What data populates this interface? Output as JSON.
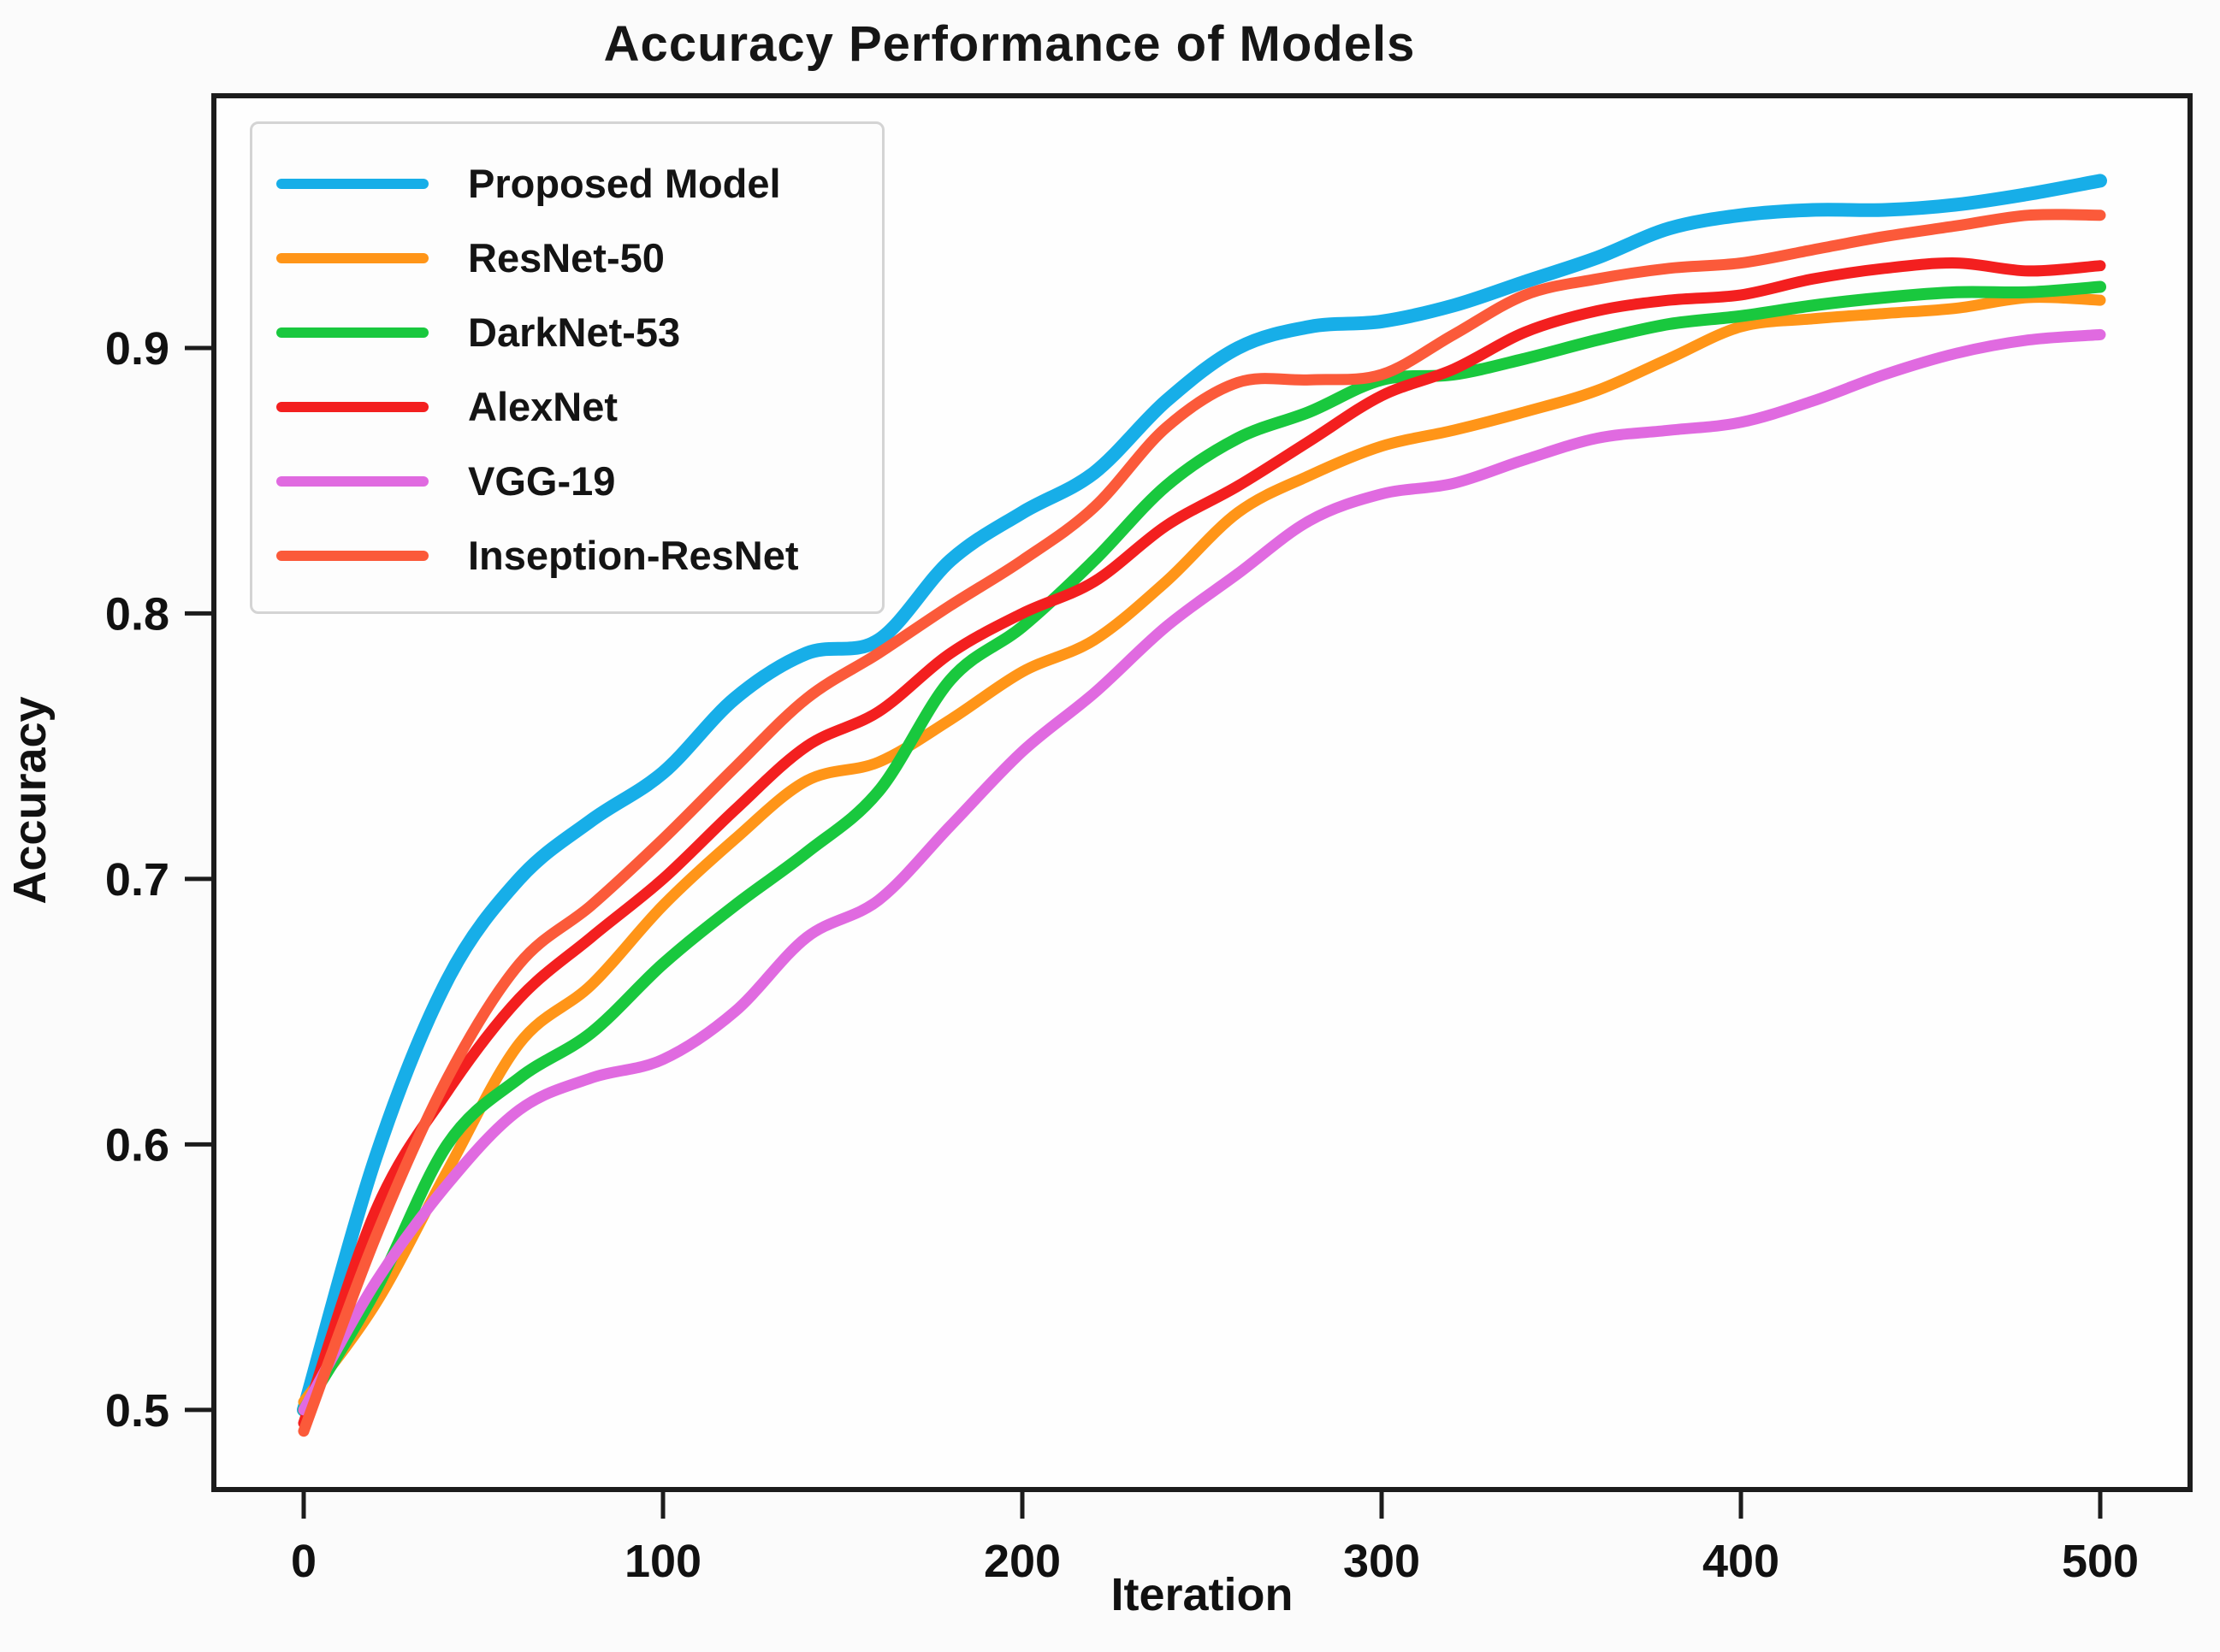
{
  "figure": {
    "title": "Accuracy Performance of Models"
  },
  "chart_data": {
    "type": "line",
    "title": "Accuracy Performance of Models",
    "xlabel": "Iteration",
    "ylabel": "Accuracy",
    "xlim": [
      -25,
      525
    ],
    "ylim": [
      0.47,
      0.995
    ],
    "xticks": [
      0,
      100,
      200,
      300,
      400,
      500
    ],
    "yticks": [
      0.5,
      0.6,
      0.7,
      0.8,
      0.9
    ],
    "grid": false,
    "legend_position": "upper left",
    "x": [
      0,
      20,
      40,
      60,
      80,
      100,
      120,
      140,
      160,
      180,
      200,
      220,
      240,
      260,
      280,
      300,
      320,
      340,
      360,
      380,
      400,
      420,
      440,
      460,
      480,
      500
    ],
    "series": [
      {
        "name": "Proposed Model",
        "color": "#17aee8",
        "linewidth": 16,
        "values": [
          0.5,
          0.595,
          0.662,
          0.7,
          0.722,
          0.74,
          0.768,
          0.785,
          0.79,
          0.82,
          0.838,
          0.853,
          0.88,
          0.9,
          0.908,
          0.91,
          0.916,
          0.925,
          0.934,
          0.945,
          0.95,
          0.952,
          0.952,
          0.954,
          0.958,
          0.963
        ]
      },
      {
        "name": "ResNet-50",
        "color": "#ff9518",
        "linewidth": 13,
        "values": [
          0.503,
          0.54,
          0.59,
          0.638,
          0.66,
          0.69,
          0.715,
          0.737,
          0.744,
          0.76,
          0.778,
          0.79,
          0.812,
          0.838,
          0.852,
          0.863,
          0.869,
          0.876,
          0.884,
          0.896,
          0.908,
          0.911,
          0.913,
          0.915,
          0.919,
          0.918
        ]
      },
      {
        "name": "DarkNet-53",
        "color": "#19c83e",
        "linewidth": 14,
        "values": [
          0.5,
          0.545,
          0.6,
          0.625,
          0.642,
          0.668,
          0.69,
          0.71,
          0.733,
          0.775,
          0.795,
          0.82,
          0.848,
          0.866,
          0.876,
          0.888,
          0.89,
          0.896,
          0.903,
          0.909,
          0.912,
          0.916,
          0.919,
          0.921,
          0.921,
          0.923
        ]
      },
      {
        "name": "AlexNet",
        "color": "#f31f1f",
        "linewidth": 13,
        "values": [
          0.495,
          0.575,
          0.62,
          0.655,
          0.678,
          0.7,
          0.726,
          0.75,
          0.763,
          0.785,
          0.8,
          0.812,
          0.833,
          0.848,
          0.865,
          0.882,
          0.892,
          0.906,
          0.914,
          0.918,
          0.92,
          0.926,
          0.93,
          0.932,
          0.929,
          0.931
        ]
      },
      {
        "name": "VGG-19",
        "color": "#e06ae0",
        "linewidth": 13,
        "values": [
          0.5,
          0.548,
          0.585,
          0.613,
          0.625,
          0.632,
          0.65,
          0.678,
          0.692,
          0.72,
          0.748,
          0.77,
          0.795,
          0.815,
          0.835,
          0.845,
          0.849,
          0.858,
          0.866,
          0.869,
          0.872,
          0.88,
          0.89,
          0.898,
          0.903,
          0.905
        ]
      },
      {
        "name": "Inseption-ResNet",
        "color": "#fb5a3a",
        "linewidth": 13,
        "values": [
          0.492,
          0.565,
          0.625,
          0.668,
          0.69,
          0.715,
          0.742,
          0.768,
          0.785,
          0.803,
          0.82,
          0.84,
          0.87,
          0.887,
          0.888,
          0.89,
          0.905,
          0.92,
          0.926,
          0.93,
          0.932,
          0.937,
          0.942,
          0.946,
          0.95,
          0.95
        ]
      }
    ],
    "axis_color": "#1c1c1c",
    "tick_label_color": "#111111"
  }
}
